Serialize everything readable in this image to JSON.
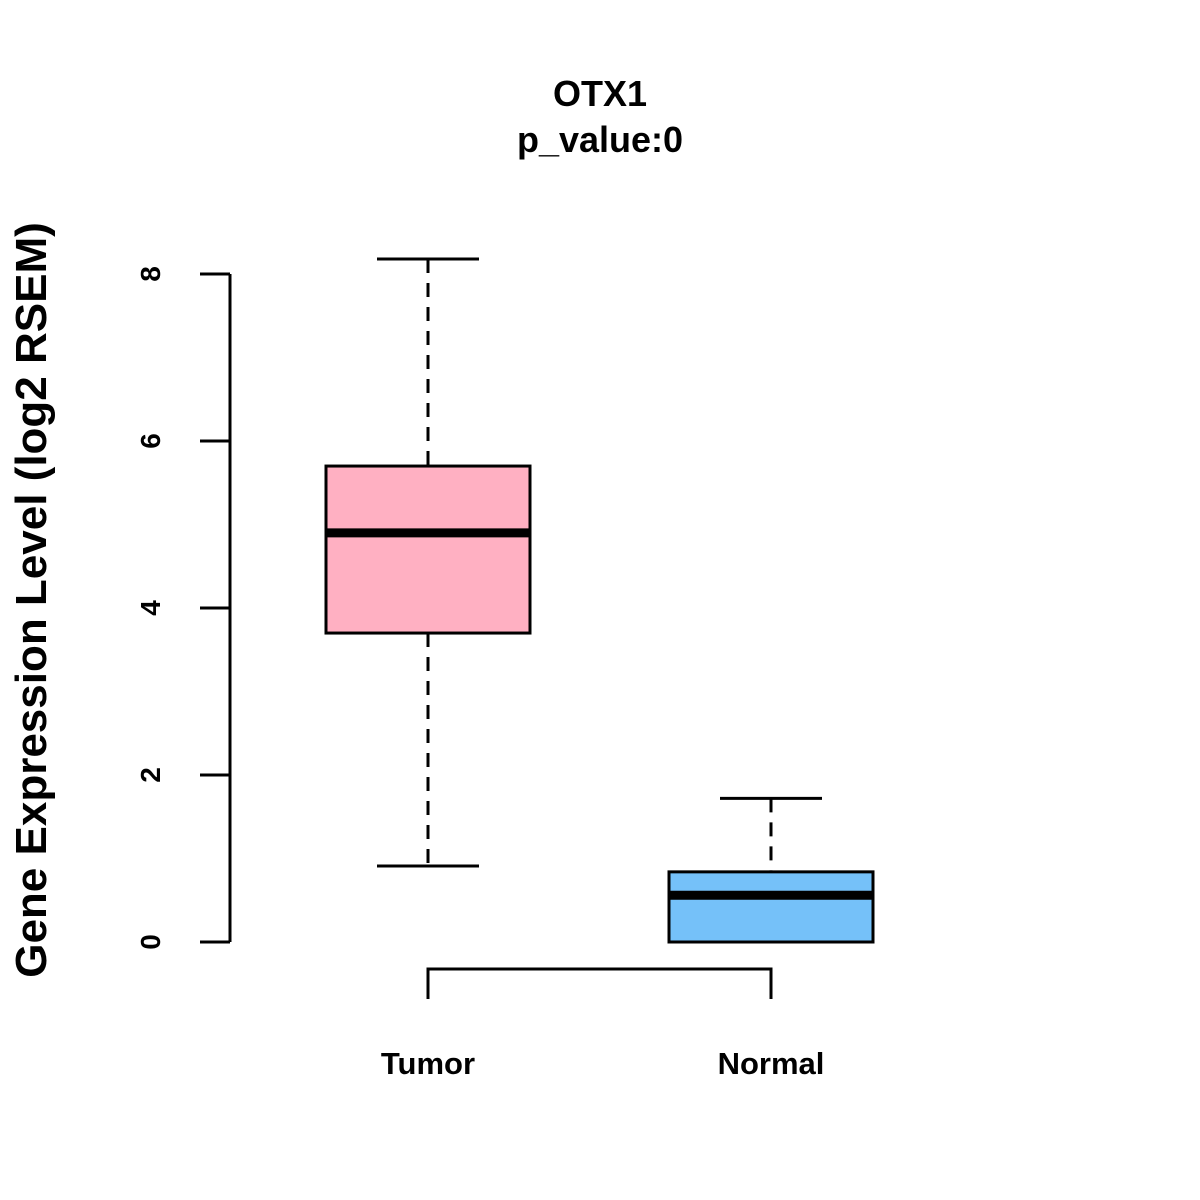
{
  "chart_data": {
    "type": "boxplot",
    "title": "OTX1",
    "subtitle": "p_value:0",
    "xlabel": "",
    "ylabel": "Gene Expression Level (log2 RSEM)",
    "ylim": [
      0,
      8.2
    ],
    "yticks": [
      0,
      2,
      4,
      6,
      8
    ],
    "yticks_labels": [
      "0",
      "2",
      "4",
      "6",
      "8"
    ],
    "categories": [
      "Tumor",
      "Normal"
    ],
    "boxes": [
      {
        "name": "Tumor",
        "whisker_low": 0.91,
        "q1": 3.7,
        "median": 4.9,
        "q3": 5.7,
        "whisker_high": 8.18,
        "color": "#FFB0C2"
      },
      {
        "name": "Normal",
        "whisker_low": 0.0,
        "q1": 0.0,
        "median": 0.56,
        "q3": 0.84,
        "whisker_high": 1.72,
        "color": "#75C1F9"
      }
    ],
    "grid": false,
    "comparison_bracket": [
      "Tumor",
      "Normal"
    ]
  }
}
